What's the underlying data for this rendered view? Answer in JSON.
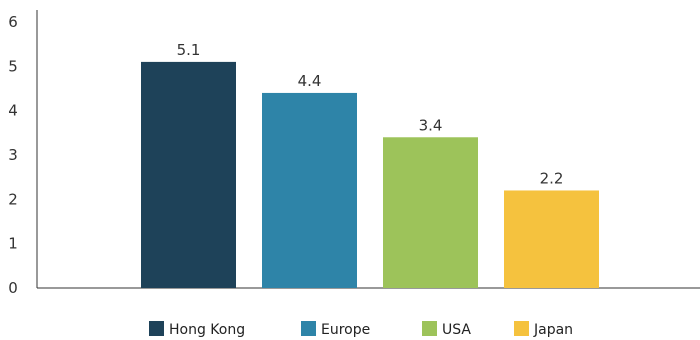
{
  "chart_data": {
    "type": "bar",
    "categories": [
      "Hong Kong",
      "Europe",
      "USA",
      "Japan"
    ],
    "values": [
      5.1,
      4.4,
      3.4,
      2.2
    ],
    "data_labels": [
      "5.1",
      "4.4",
      "3.4",
      "2.2"
    ],
    "colors": [
      "#1e4259",
      "#2e84a8",
      "#9dc35a",
      "#f5c23e"
    ],
    "ylim": [
      0,
      6
    ],
    "yticks": [
      "0",
      "1",
      "2",
      "3",
      "4",
      "5",
      "6"
    ],
    "title": "",
    "xlabel": "",
    "ylabel": "",
    "grid": false,
    "legend": {
      "position": "bottom",
      "entries": [
        "Hong Kong",
        "Europe",
        "USA",
        "Japan"
      ]
    }
  }
}
